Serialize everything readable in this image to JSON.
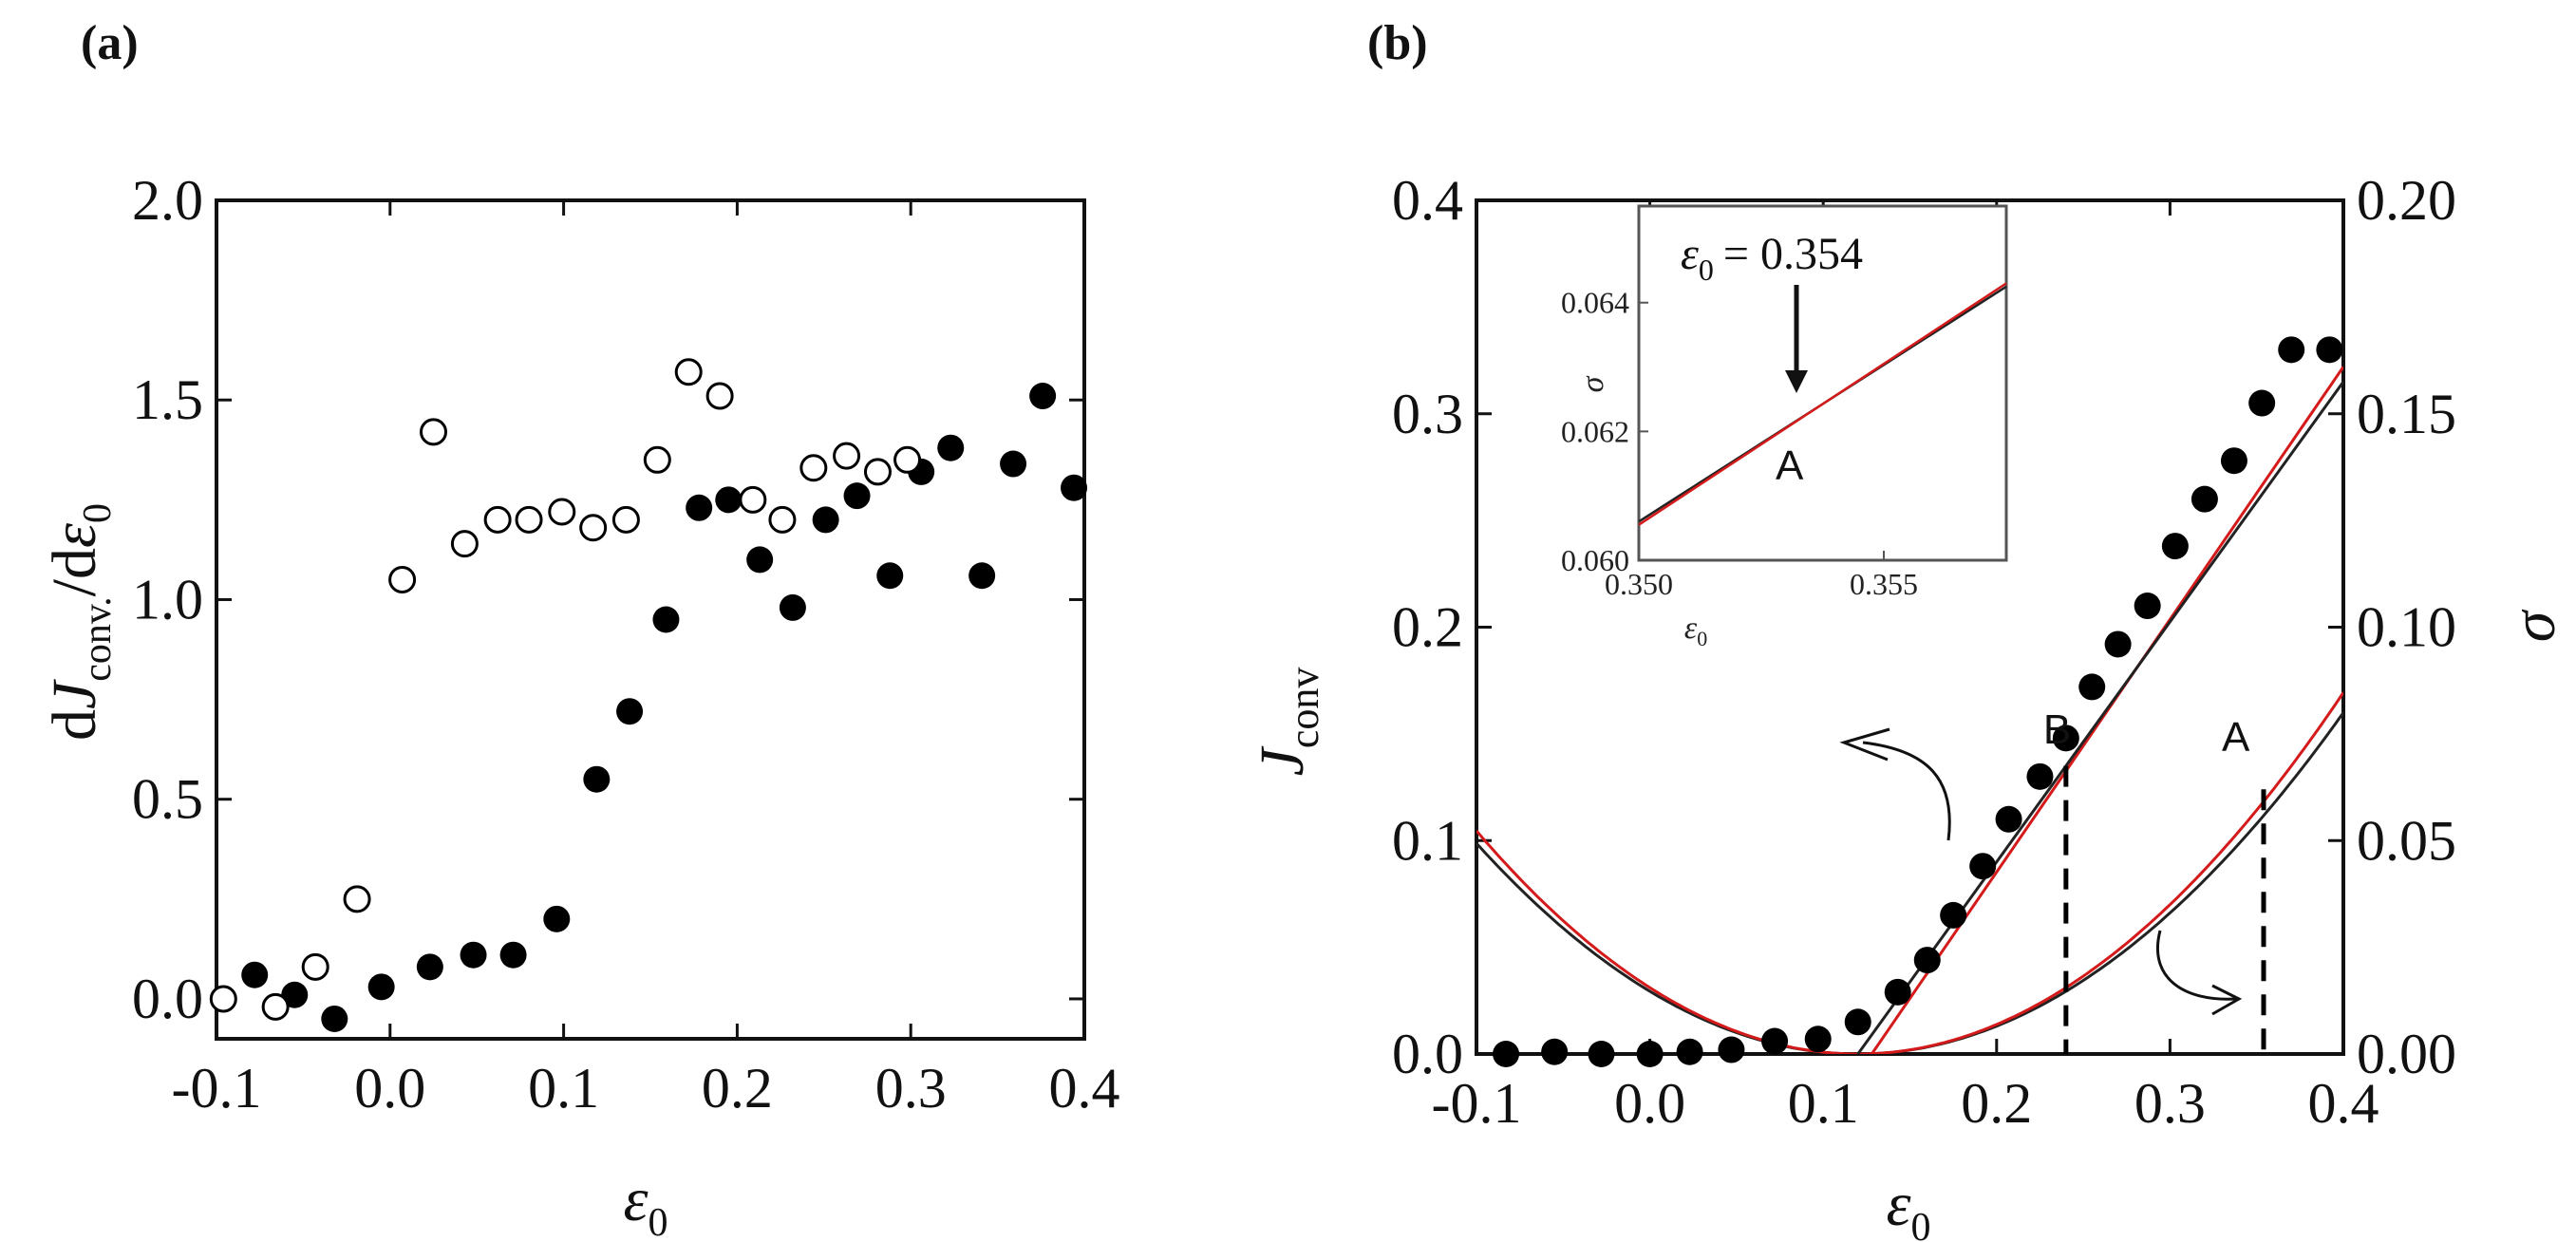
{
  "chart_data": [
    {
      "panel_label": "(a)",
      "type": "scatter",
      "xlabel": {
        "symbol": "ε",
        "sub": "0"
      },
      "ylabel": {
        "d1": "d",
        "J": "J",
        "sub": "conv.",
        "rest": "/d",
        "eps": "ε",
        "epsSub": "0"
      },
      "xlim": [
        -0.1,
        0.4
      ],
      "ylim": [
        -0.1,
        2.0
      ],
      "xticks": [
        "-0.1",
        "0.0",
        "0.1",
        "0.2",
        "0.3",
        "0.4"
      ],
      "yticks": [
        "0.0",
        "0.5",
        "1.0",
        "1.5",
        "2.0"
      ],
      "series": [
        {
          "marker": "filled",
          "x": [
            -0.078,
            -0.055,
            -0.032,
            -0.005,
            0.023,
            0.048,
            0.071,
            0.096,
            0.119,
            0.138,
            0.159,
            0.178,
            0.195,
            0.213,
            0.232,
            0.251,
            0.269,
            0.288,
            0.306,
            0.323,
            0.341,
            0.359,
            0.376,
            0.394
          ],
          "y": [
            0.06,
            0.01,
            -0.05,
            0.03,
            0.08,
            0.11,
            0.11,
            0.2,
            0.55,
            0.72,
            0.95,
            1.23,
            1.25,
            1.1,
            0.98,
            1.2,
            1.26,
            1.06,
            1.32,
            1.38,
            1.06,
            1.34,
            1.51,
            1.28
          ]
        },
        {
          "marker": "open",
          "x": [
            -0.096,
            -0.066,
            -0.043,
            -0.019,
            0.007,
            0.025,
            0.043,
            0.062,
            0.08,
            0.099,
            0.117,
            0.136,
            0.154,
            0.172,
            0.19,
            0.209,
            0.226,
            0.244,
            0.263,
            0.281,
            0.298
          ],
          "y": [
            0.0,
            -0.02,
            0.08,
            0.25,
            1.05,
            1.42,
            1.14,
            1.2,
            1.2,
            1.22,
            1.18,
            1.2,
            1.35,
            1.57,
            1.51,
            1.25,
            1.2,
            1.33,
            1.36,
            1.32,
            1.35
          ]
        }
      ]
    },
    {
      "panel_label": "(b)",
      "type": "scatter+line",
      "xlabel": {
        "symbol": "ε",
        "sub": "0"
      },
      "ylabel_left": {
        "symbol": "J",
        "sub": "conv"
      },
      "ylabel_right": "σ",
      "xlim": [
        -0.1,
        0.4
      ],
      "ylim_left": [
        0.0,
        0.4
      ],
      "ylim_right": [
        0.0,
        0.2
      ],
      "xticks": [
        "-0.1",
        "0.0",
        "0.1",
        "0.2",
        "0.3",
        "0.4"
      ],
      "yticks_left": [
        "0.0",
        "0.1",
        "0.2",
        "0.3",
        "0.4"
      ],
      "yticks_right": [
        "0.00",
        "0.05",
        "0.10",
        "0.15",
        "0.20"
      ],
      "J_points": {
        "x": [
          -0.083,
          -0.055,
          -0.028,
          0.0,
          0.023,
          0.047,
          0.072,
          0.097,
          0.12,
          0.143,
          0.16,
          0.175,
          0.192,
          0.207,
          0.225,
          0.24,
          0.255,
          0.27,
          0.287,
          0.303,
          0.32,
          0.337,
          0.353,
          0.37,
          0.392
        ],
        "y": [
          0.0,
          0.001,
          0.0,
          0.0,
          0.001,
          0.002,
          0.006,
          0.007,
          0.015,
          0.029,
          0.044,
          0.065,
          0.088,
          0.11,
          0.13,
          0.148,
          0.172,
          0.192,
          0.21,
          0.238,
          0.26,
          0.278,
          0.305,
          0.33,
          0.33
        ]
      },
      "J_fit_lines": [
        {
          "color": "#d41a1a",
          "x": [
            0.128,
            0.4
          ],
          "y": [
            0.0,
            0.322
          ]
        },
        {
          "color": "#222222",
          "x": [
            0.12,
            0.4
          ],
          "y": [
            0.0,
            0.315
          ]
        }
      ],
      "sigma_curves": [
        {
          "color": "#222222",
          "vertex_x": 0.12,
          "a": 1.02,
          "c": 0.0
        },
        {
          "color": "#d41a1a",
          "vertex_x": 0.12,
          "a": 1.08,
          "c": 0.0
        }
      ],
      "markers": [
        {
          "label": "B",
          "x": 0.24
        },
        {
          "label": "A",
          "x": 0.354
        }
      ],
      "inset": {
        "xlabel": {
          "symbol": "ε",
          "sub": "0"
        },
        "ylabel": "σ",
        "xlim": [
          0.35,
          0.3575
        ],
        "ylim": [
          0.06,
          0.0655
        ],
        "xticks": [
          "0.350",
          "0.355"
        ],
        "yticks": [
          "0.060",
          "0.062",
          "0.064"
        ],
        "annotation": {
          "eps": "ε",
          "sub": "0",
          "eq": "= 0.354"
        },
        "arrow_x": 0.354,
        "label": "A",
        "lines": [
          {
            "color": "#222222",
            "x": [
              0.35,
              0.3575
            ],
            "y": [
              0.0606,
              0.06425
            ]
          },
          {
            "color": "#d41a1a",
            "x": [
              0.35,
              0.3575
            ],
            "y": [
              0.06055,
              0.0643
            ]
          }
        ]
      }
    }
  ]
}
